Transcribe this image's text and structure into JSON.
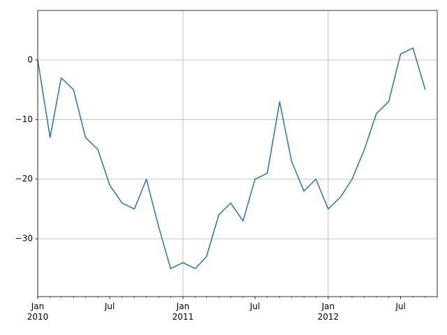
{
  "chart_data": {
    "type": "line",
    "x": [
      "2010-01",
      "2010-02",
      "2010-03",
      "2010-04",
      "2010-05",
      "2010-06",
      "2010-07",
      "2010-08",
      "2010-09",
      "2010-10",
      "2010-11",
      "2010-12",
      "2011-01",
      "2011-02",
      "2011-03",
      "2011-04",
      "2011-05",
      "2011-06",
      "2011-07",
      "2011-08",
      "2011-09",
      "2011-10",
      "2011-11",
      "2011-12",
      "2012-01",
      "2012-02",
      "2012-03",
      "2012-04",
      "2012-05",
      "2012-06",
      "2012-07",
      "2012-08",
      "2012-09"
    ],
    "series": [
      {
        "color": "#1f77b4",
        "values": [
          0,
          -13,
          -3,
          -5,
          -13,
          -15,
          -21,
          -24,
          -25,
          -20,
          -28,
          -35,
          -34,
          -35,
          -33,
          -26,
          -24,
          -27,
          -20,
          -19,
          -7,
          -17,
          -22,
          -20,
          -25,
          -23,
          -20,
          -15,
          -9,
          -7,
          1,
          2,
          -5
        ]
      }
    ],
    "xlim": [
      "2010-01",
      "2012-10"
    ],
    "xticks": [
      {
        "value": "2010-01",
        "label": "Jan\n2010"
      },
      {
        "value": "2010-07",
        "label": "Jul"
      },
      {
        "value": "2011-01",
        "label": "Jan\n2011"
      },
      {
        "value": "2011-07",
        "label": "Jul"
      },
      {
        "value": "2012-01",
        "label": "Jan\n2012"
      },
      {
        "value": "2012-07",
        "label": "Jul"
      }
    ],
    "ylim": [
      -39.7,
      8.3
    ],
    "yticks": [
      {
        "value": 0,
        "label": "0"
      },
      {
        "value": -10,
        "label": "−10"
      },
      {
        "value": -20,
        "label": "−20"
      },
      {
        "value": -30,
        "label": "−30"
      }
    ],
    "grid": true
  }
}
